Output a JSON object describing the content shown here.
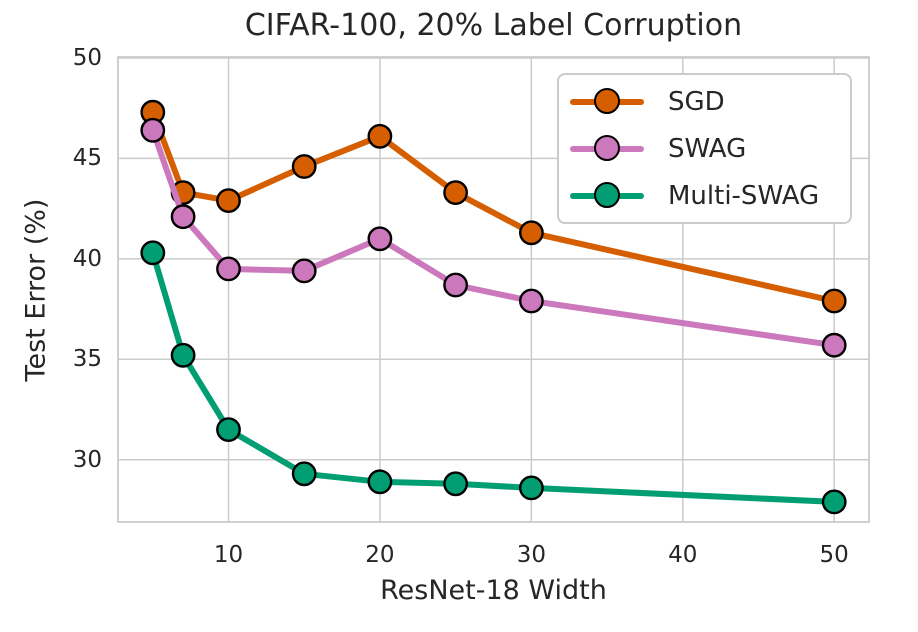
{
  "chart_data": {
    "type": "line",
    "title": "CIFAR-100, 20% Label Corruption",
    "xlabel": "ResNet-18 Width",
    "ylabel": "Test Error (%)",
    "x": [
      5,
      7,
      10,
      15,
      20,
      25,
      30,
      50
    ],
    "series": [
      {
        "name": "SGD",
        "color": "#d55e00",
        "values": [
          47.3,
          43.3,
          42.9,
          44.6,
          46.1,
          43.3,
          41.3,
          37.9
        ]
      },
      {
        "name": "SWAG",
        "color": "#cc78bc",
        "values": [
          46.4,
          42.1,
          39.5,
          39.4,
          41.0,
          38.7,
          37.9,
          35.7
        ]
      },
      {
        "name": "Multi-SWAG",
        "color": "#029e73",
        "values": [
          40.3,
          35.2,
          31.5,
          29.3,
          28.9,
          28.8,
          28.6,
          27.9
        ]
      }
    ],
    "xticks": [
      10,
      20,
      30,
      40,
      50
    ],
    "yticks": [
      30,
      35,
      40,
      45,
      50
    ],
    "xlim": [
      2.7,
      52.3
    ],
    "ylim": [
      26.9,
      50.05
    ],
    "grid": true,
    "legend_position": "upper right"
  },
  "style": {
    "background": "#ffffff",
    "grid_color": "#cbcbcb",
    "spine_color": "#cbcbcb",
    "text_color": "#262626",
    "marker_edge_color": "#000000"
  }
}
